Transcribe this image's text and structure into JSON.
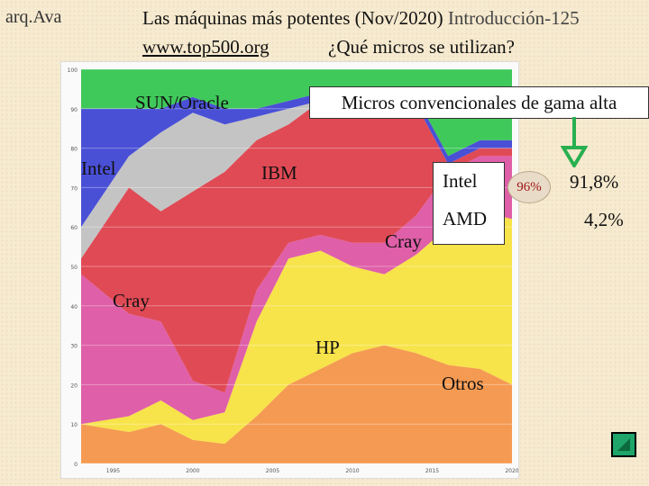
{
  "header": {
    "course": "arq.Ava",
    "title_main": "Las máquinas más potentes (Nov/2020) ",
    "title_slide": "Introducción-125",
    "url": "www.top500.org",
    "question": "¿Qué micros se utilizan?"
  },
  "annotations": {
    "sun_oracle": "SUN/Oracle",
    "micros_box": "Micros convencionales de gama alta",
    "intel_left": "Intel",
    "ibm": "IBM",
    "cray_right": "Cray",
    "cray_left": "Cray",
    "hp": "HP",
    "otros": "Otros"
  },
  "shares": {
    "intel_label": "Intel",
    "amd_label": "AMD",
    "combined": "96%",
    "intel_value": "91,8%",
    "amd_value": "4,2%"
  },
  "colors": {
    "intel": "#4a50d6",
    "cray": "#df5fa8",
    "green": "#3fc95a",
    "sun": "#c4c4c4",
    "ibm": "#e04a55",
    "hp": "#f7e34a",
    "other_top": "#f59a52",
    "arrow": "#28b050"
  },
  "chart_data": {
    "type": "area",
    "x": [
      1993,
      1996,
      1998,
      2000,
      2002,
      2004,
      2006,
      2008,
      2010,
      2012,
      2014,
      2016,
      2018,
      2020
    ],
    "x_tick_labels": [
      "1995",
      "2000",
      "2005",
      "2010",
      "2015",
      "2020"
    ],
    "ylim": [
      0,
      100
    ],
    "y_tick_labels": [
      "0",
      "10",
      "20",
      "30",
      "40",
      "50",
      "60",
      "70",
      "80",
      "90",
      "100"
    ],
    "grid": true,
    "series": [
      {
        "name": "Otros",
        "values": [
          10,
          8,
          10,
          6,
          5,
          12,
          20,
          24,
          28,
          30,
          28,
          25,
          24,
          20
        ]
      },
      {
        "name": "HP",
        "values": [
          0,
          4,
          6,
          5,
          8,
          24,
          32,
          30,
          22,
          18,
          25,
          35,
          40,
          42
        ]
      },
      {
        "name": "Cray",
        "values": [
          38,
          26,
          20,
          10,
          5,
          8,
          4,
          4,
          6,
          8,
          10,
          14,
          14,
          16
        ]
      },
      {
        "name": "IBM",
        "values": [
          4,
          32,
          28,
          48,
          56,
          38,
          30,
          34,
          36,
          34,
          28,
          2,
          2,
          2
        ]
      },
      {
        "name": "SUN/Oracle",
        "values": [
          8,
          8,
          20,
          20,
          12,
          6,
          4,
          0,
          0,
          0,
          0,
          0,
          0,
          0
        ]
      },
      {
        "name": "Intel",
        "values": [
          30,
          12,
          6,
          4,
          4,
          2,
          2,
          2,
          2,
          2,
          2,
          2,
          2,
          2
        ]
      },
      {
        "name": "Micros convencionales de gama alta",
        "values": [
          10,
          10,
          10,
          7,
          10,
          10,
          8,
          6,
          6,
          8,
          7,
          22,
          18,
          18
        ]
      }
    ]
  }
}
